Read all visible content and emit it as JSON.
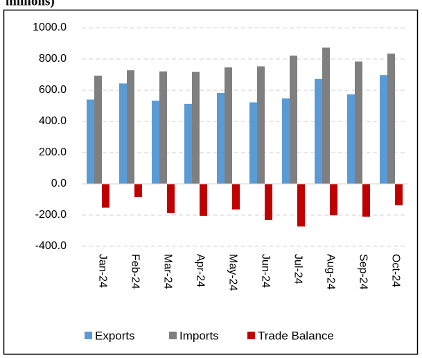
{
  "chart_data": {
    "type": "bar",
    "title": "millions)",
    "categories": [
      "Jan-24",
      "Feb-24",
      "Mar-24",
      "Apr-24",
      "May-24",
      "Jun-24",
      "Jul-24",
      "Aug-24",
      "Sep-24",
      "Oct-24"
    ],
    "series": [
      {
        "name": "Exports",
        "color": "#5b9bd5",
        "values": [
          540,
          643,
          533,
          512,
          582,
          522,
          548,
          672,
          573,
          697
        ]
      },
      {
        "name": "Imports",
        "color": "#7f7f7f",
        "values": [
          693,
          728,
          720,
          717,
          746,
          753,
          821,
          873,
          784,
          834
        ]
      },
      {
        "name": "Trade Balance",
        "color": "#c00000",
        "values": [
          -153,
          -85,
          -187,
          -205,
          -164,
          -231,
          -273,
          -201,
          -211,
          -137
        ]
      }
    ],
    "ylim": [
      -400,
      1000
    ],
    "yticks": [
      {
        "value": -400,
        "label": "-400.0"
      },
      {
        "value": -200,
        "label": "-200.0"
      },
      {
        "value": 0,
        "label": "0.0"
      },
      {
        "value": 200,
        "label": "200.0"
      },
      {
        "value": 400,
        "label": "400.0"
      },
      {
        "value": 600,
        "label": "600.0"
      },
      {
        "value": 800,
        "label": "800.0"
      },
      {
        "value": 1000,
        "label": "1000.0"
      }
    ],
    "grid": true,
    "legend": "bottom"
  }
}
